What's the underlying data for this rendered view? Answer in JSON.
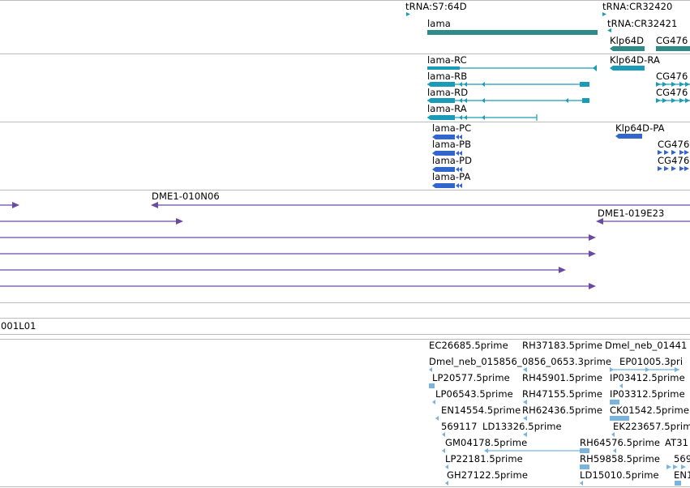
{
  "colors": {
    "gene": "#2e8b87",
    "transcript": "#1a9cb8",
    "protein": "#3366cc",
    "clone": "#6a4aa3",
    "est": "#7ab3dd",
    "separator": "#bdbdbd"
  },
  "tracks": {
    "genes": {
      "labels": [
        "tRNA:S7:64D",
        "lama",
        "tRNA:CR32420",
        "tRNA:CR32421",
        "Klp64D",
        "CG476"
      ]
    },
    "transcripts": {
      "labels": [
        "lama-RC",
        "lama-RB",
        "lama-RD",
        "lama-RA",
        "Klp64D-RA",
        "CG476",
        "CG476"
      ]
    },
    "proteins": {
      "labels": [
        "lama-PC",
        "lama-PB",
        "lama-PD",
        "lama-PA",
        "Klp64D-PA",
        "CG476",
        "CG476"
      ]
    },
    "clones": {
      "labels": [
        "DME1-010N06",
        "DME1-019E23"
      ]
    },
    "misc": {
      "labels": [
        "001L01"
      ]
    },
    "ests": {
      "labels": [
        "EC26685.5prime",
        "RH37183.5prime",
        "Dmel_neb_01441",
        "Dmel_neb_015856_0856_0653.3prime",
        "EP01005.3pri",
        "LP20577.5prime",
        "RH45901.5prime",
        "IP03412.5prime",
        "LP06543.5prime",
        "RH47155.5prime",
        "IP03312.5prime",
        "EN14554.5prime",
        "RH62436.5prime",
        "CK01542.5prime",
        "569117",
        "LD13326.5prime",
        "EK223657.5prime",
        "GM04178.5prime",
        "RH64576.5prime",
        "AT31",
        "LP22181.5prime",
        "RH59858.5prime",
        "569",
        "GH27122.5prime",
        "LD15010.5prime",
        "EN1"
      ]
    }
  }
}
